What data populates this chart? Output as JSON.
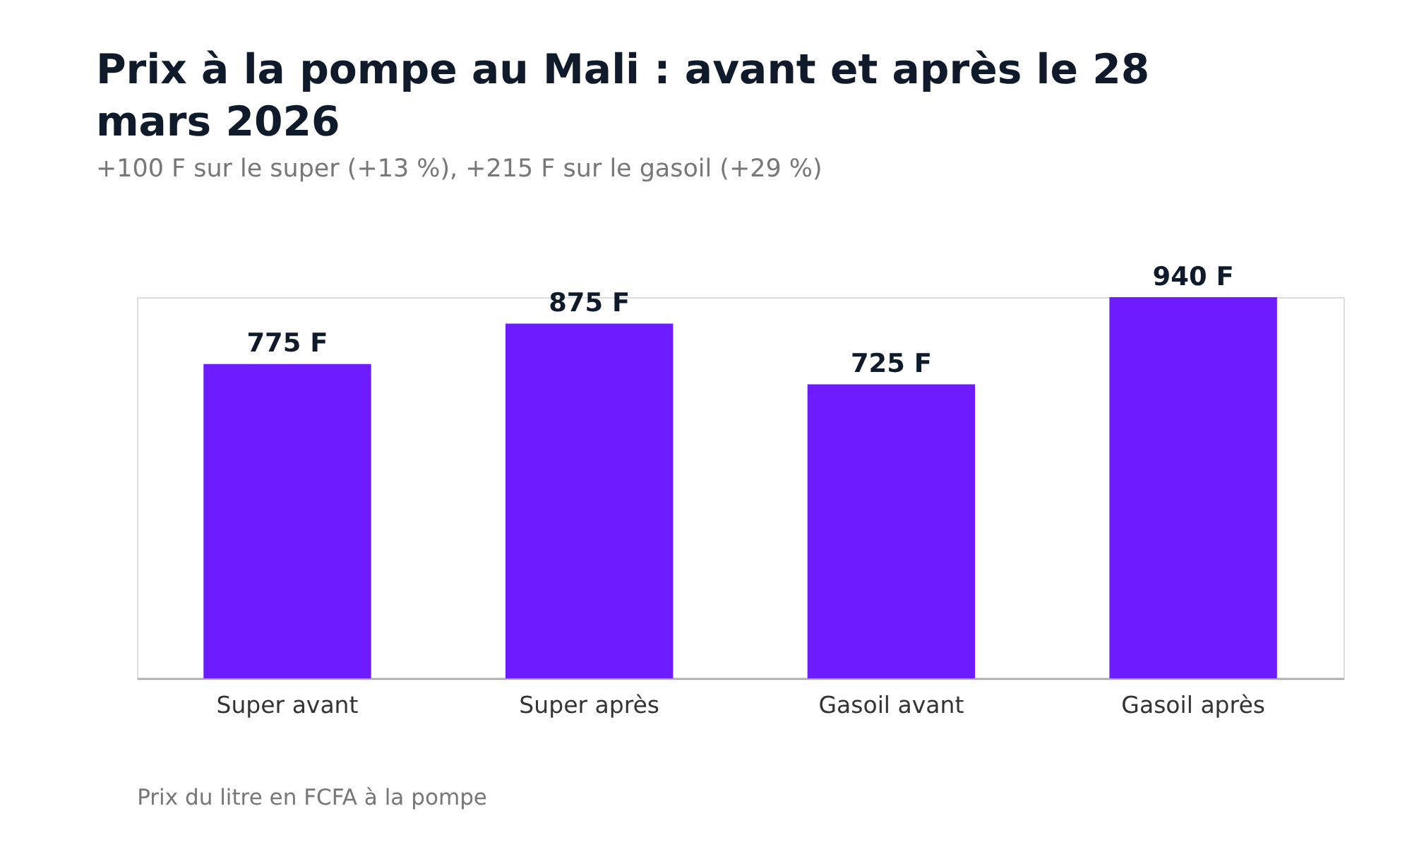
{
  "chart_data": {
    "type": "bar",
    "title": "Prix à la pompe au Mali : avant et après le 28 mars 2026",
    "subtitle": "+100 F sur le super (+13 %), +215 F sur le gasoil (+29 %)",
    "categories": [
      "Super avant",
      "Super après",
      "Gasoil avant",
      "Gasoil après"
    ],
    "values": [
      775,
      875,
      725,
      940
    ],
    "value_labels": [
      "775 F",
      "875 F",
      "725 F",
      "940 F"
    ],
    "color": "#6c1cff",
    "grid": false,
    "tick_labels": "x",
    "annotations": [
      "Prix du litre en FCFA à la pompe"
    ]
  }
}
